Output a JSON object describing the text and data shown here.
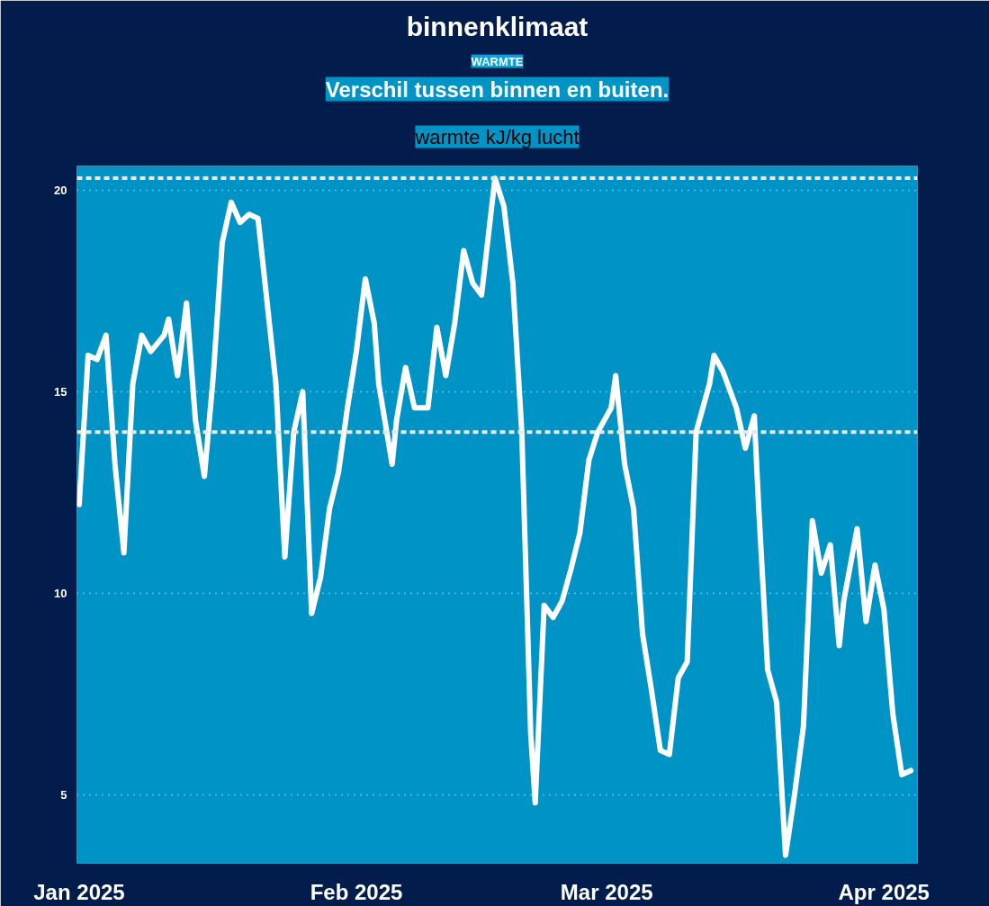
{
  "chart_data": {
    "type": "line",
    "title": "binnenklimaat",
    "subtitle": "Verschil tussen binnen en buiten.",
    "annotations": [
      "WARMTE",
      "warmte kJ/kg lucht"
    ],
    "x": [
      "2025-01-01",
      "2025-01-02",
      "2025-01-03",
      "2025-01-04",
      "2025-01-05",
      "2025-01-06",
      "2025-01-07",
      "2025-01-08",
      "2025-01-09",
      "2025-01-10T12:00",
      "2025-01-11",
      "2025-01-12",
      "2025-01-13",
      "2025-01-14",
      "2025-01-15",
      "2025-01-16",
      "2025-01-17",
      "2025-01-18",
      "2025-01-19",
      "2025-01-20",
      "2025-01-21",
      "2025-01-23",
      "2025-01-24",
      "2025-01-25",
      "2025-01-26",
      "2025-01-27",
      "2025-01-28",
      "2025-01-29",
      "2025-01-30",
      "2025-01-31",
      "2025-02-01",
      "2025-02-02",
      "2025-02-03",
      "2025-02-03T12:00",
      "2025-02-05",
      "2025-02-05T12:00",
      "2025-02-06T12:00",
      "2025-02-07T12:00",
      "2025-02-09",
      "2025-02-10",
      "2025-02-11",
      "2025-02-12",
      "2025-02-13",
      "2025-02-14",
      "2025-02-15",
      "2025-02-16T12:00",
      "2025-02-17T12:00",
      "2025-02-18T12:00",
      "2025-02-19T12:00",
      "2025-02-20T12:00",
      "2025-02-21",
      "2025-02-22",
      "2025-02-23",
      "2025-02-24",
      "2025-02-25",
      "2025-02-26",
      "2025-02-27",
      "2025-02-28",
      "2025-03-01T12:00",
      "2025-03-02",
      "2025-03-03",
      "2025-03-04",
      "2025-03-05",
      "2025-03-06",
      "2025-03-07",
      "2025-03-08",
      "2025-03-09",
      "2025-03-10",
      "2025-03-11",
      "2025-03-12T12:00",
      "2025-03-13",
      "2025-03-14",
      "2025-03-15T12:00",
      "2025-03-16T12:00",
      "2025-03-17T12:00",
      "2025-03-18",
      "2025-03-19",
      "2025-03-20",
      "2025-03-21",
      "2025-03-22",
      "2025-03-23",
      "2025-03-24",
      "2025-03-25",
      "2025-03-26",
      "2025-03-27",
      "2025-03-27T12:00",
      "2025-03-29",
      "2025-03-30",
      "2025-03-31",
      "2025-04-01",
      "2025-04-02",
      "2025-04-03",
      "2025-04-04"
    ],
    "series": [
      {
        "color": "#ffffff",
        "values": [
          12.2,
          15.9,
          15.8,
          16.4,
          13.2,
          11.0,
          15.2,
          16.4,
          16.0,
          16.4,
          16.8,
          15.4,
          17.2,
          14.3,
          12.9,
          15.4,
          18.7,
          19.7,
          19.2,
          19.4,
          19.3,
          15.2,
          10.9,
          14.0,
          15.0,
          9.5,
          10.4,
          12.1,
          13.0,
          14.6,
          16.0,
          17.8,
          16.7,
          15.2,
          13.2,
          14.3,
          15.6,
          14.6,
          14.6,
          16.6,
          15.4,
          16.7,
          18.5,
          17.7,
          17.4,
          20.3,
          19.6,
          17.7,
          14.0,
          6.5,
          4.8,
          9.7,
          9.4,
          9.8,
          10.6,
          11.5,
          13.3,
          14.0,
          14.6,
          15.4,
          13.2,
          12.1,
          9.0,
          7.6,
          6.1,
          6.0,
          7.9,
          8.3,
          14.0,
          15.2,
          15.9,
          15.5,
          14.6,
          13.6,
          14.4,
          12.1,
          8.1,
          7.3,
          3.5,
          5.0,
          6.7,
          11.8,
          10.5,
          11.2,
          8.7,
          9.8,
          11.6,
          9.3,
          10.7,
          9.6,
          7.0,
          5.5,
          5.6
        ]
      }
    ],
    "xlim": [
      "2024-12-31T18:00",
      "2025-04-04T18:00"
    ],
    "xticks": [
      {
        "value": "2025-01-01",
        "label": "Jan 2025"
      },
      {
        "value": "2025-02-01",
        "label": "Feb 2025"
      },
      {
        "value": "2025-03-01",
        "label": "Mar 2025"
      },
      {
        "value": "2025-04-01",
        "label": "Apr 2025"
      }
    ],
    "ylim": [
      3.3,
      20.6
    ],
    "yticks": [
      5,
      10,
      15,
      20
    ],
    "grid": "y",
    "ref_lines": [
      {
        "axis": "y",
        "value": 20.3,
        "color": "#e8e8e8",
        "line_style": "dashed"
      },
      {
        "axis": "y",
        "value": 14,
        "color": "#e8e8e8",
        "line_style": "dashed"
      }
    ]
  }
}
